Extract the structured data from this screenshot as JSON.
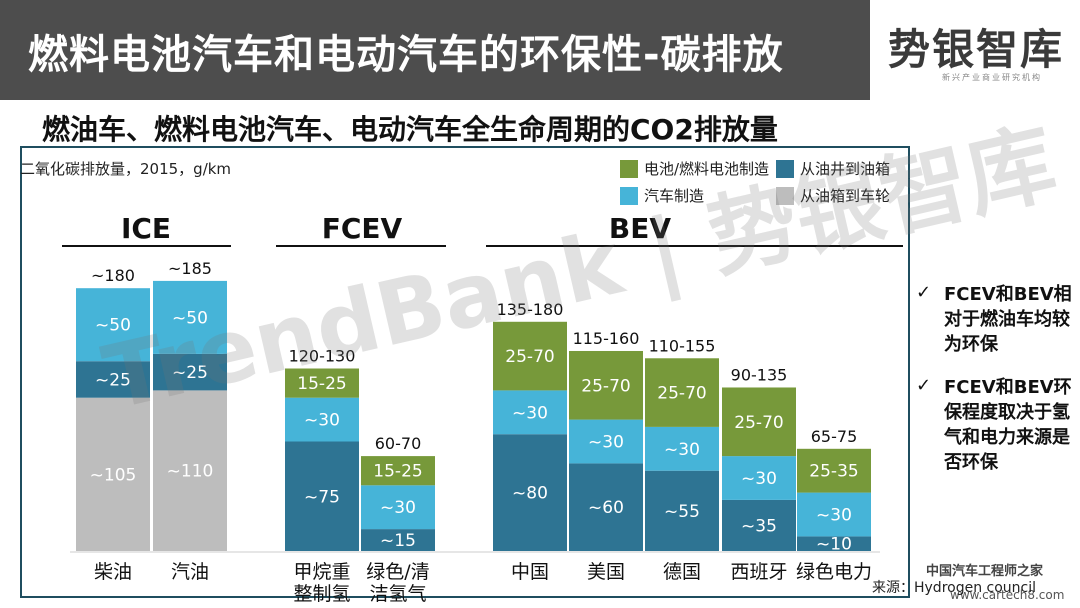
{
  "header": {
    "title": "燃料电池汽车和电动汽车的环保性-碳排放",
    "logo_text": "势银智库",
    "logo_subtext": "新兴产业商业研究机构"
  },
  "subtitle": "燃油车、燃料电池汽车、电动汽车全生命周期的CO2排放量",
  "watermark": "TrendBank | 势银智库",
  "corner_mark": "中国汽车工程师之家",
  "corner_url": "www.cartech8.com",
  "source": "来源：Hydrogen council",
  "colors": {
    "battery": "#77993a",
    "vehicle": "#46b4d8",
    "well_to_tank": "#2e7493",
    "tank_to_wheel": "#bdbdbd",
    "title_bar": "#4d4d4d",
    "panel_border": "#1f4e5f"
  },
  "notes": [
    {
      "icon": "check-icon",
      "text": "FCEV和BEV相对于燃油车均较为环保"
    },
    {
      "icon": "check-icon",
      "text": "FCEV和BEV环保程度取决于氢气和电力来源是否环保"
    }
  ],
  "chart_data": {
    "type": "bar",
    "stacked": true,
    "unit_label": "二氧化碳排放量，2015，g/km",
    "legend": [
      {
        "key": "battery",
        "label": "电池/燃料电池制造"
      },
      {
        "key": "well_to_tank",
        "label": "从油井到油箱"
      },
      {
        "key": "vehicle",
        "label": "汽车制造"
      },
      {
        "key": "tank_to_wheel",
        "label": "从油箱到车轮"
      }
    ],
    "groups": [
      {
        "name": "ICE",
        "categories": [
          "柴油",
          "汽油"
        ]
      },
      {
        "name": "FCEV",
        "categories": [
          "甲烷重\n整制氢",
          "绿色/清\n洁氢气"
        ]
      },
      {
        "name": "BEV",
        "categories": [
          "中国",
          "美国",
          "德国",
          "西班牙",
          "绿色电力"
        ]
      }
    ],
    "bars": [
      {
        "category": "柴油",
        "total_label": "~180",
        "segments": [
          {
            "key": "tank_to_wheel",
            "value": 105,
            "label": "~105"
          },
          {
            "key": "well_to_tank",
            "value": 25,
            "label": "~25"
          },
          {
            "key": "vehicle",
            "value": 50,
            "label": "~50"
          }
        ]
      },
      {
        "category": "汽油",
        "total_label": "~185",
        "segments": [
          {
            "key": "tank_to_wheel",
            "value": 110,
            "label": "~110"
          },
          {
            "key": "well_to_tank",
            "value": 25,
            "label": "~25"
          },
          {
            "key": "vehicle",
            "value": 50,
            "label": "~50"
          }
        ]
      },
      {
        "category": "甲烷重\n整制氢",
        "total_label": "120-130",
        "segments": [
          {
            "key": "well_to_tank",
            "value": 75,
            "label": "~75"
          },
          {
            "key": "vehicle",
            "value": 30,
            "label": "~30"
          },
          {
            "key": "battery",
            "value": 20,
            "label": "15-25"
          }
        ]
      },
      {
        "category": "绿色/清\n洁氢气",
        "total_label": "60-70",
        "segments": [
          {
            "key": "well_to_tank",
            "value": 15,
            "label": "~15"
          },
          {
            "key": "vehicle",
            "value": 30,
            "label": "~30"
          },
          {
            "key": "battery",
            "value": 20,
            "label": "15-25"
          }
        ]
      },
      {
        "category": "中国",
        "total_label": "135-180",
        "segments": [
          {
            "key": "well_to_tank",
            "value": 80,
            "label": "~80"
          },
          {
            "key": "vehicle",
            "value": 30,
            "label": "~30"
          },
          {
            "key": "battery",
            "value": 47,
            "label": "25-70"
          }
        ]
      },
      {
        "category": "美国",
        "total_label": "115-160",
        "segments": [
          {
            "key": "well_to_tank",
            "value": 60,
            "label": "~60"
          },
          {
            "key": "vehicle",
            "value": 30,
            "label": "~30"
          },
          {
            "key": "battery",
            "value": 47,
            "label": "25-70"
          }
        ]
      },
      {
        "category": "德国",
        "total_label": "110-155",
        "segments": [
          {
            "key": "well_to_tank",
            "value": 55,
            "label": "~55"
          },
          {
            "key": "vehicle",
            "value": 30,
            "label": "~30"
          },
          {
            "key": "battery",
            "value": 47,
            "label": "25-70"
          }
        ]
      },
      {
        "category": "西班牙",
        "total_label": "90-135",
        "segments": [
          {
            "key": "well_to_tank",
            "value": 35,
            "label": "~35"
          },
          {
            "key": "vehicle",
            "value": 30,
            "label": "~30"
          },
          {
            "key": "battery",
            "value": 47,
            "label": "25-70"
          }
        ]
      },
      {
        "category": "绿色电力",
        "total_label": "65-75",
        "segments": [
          {
            "key": "well_to_tank",
            "value": 10,
            "label": "~10"
          },
          {
            "key": "vehicle",
            "value": 30,
            "label": "~30"
          },
          {
            "key": "battery",
            "value": 30,
            "label": "25-35"
          }
        ]
      }
    ]
  }
}
